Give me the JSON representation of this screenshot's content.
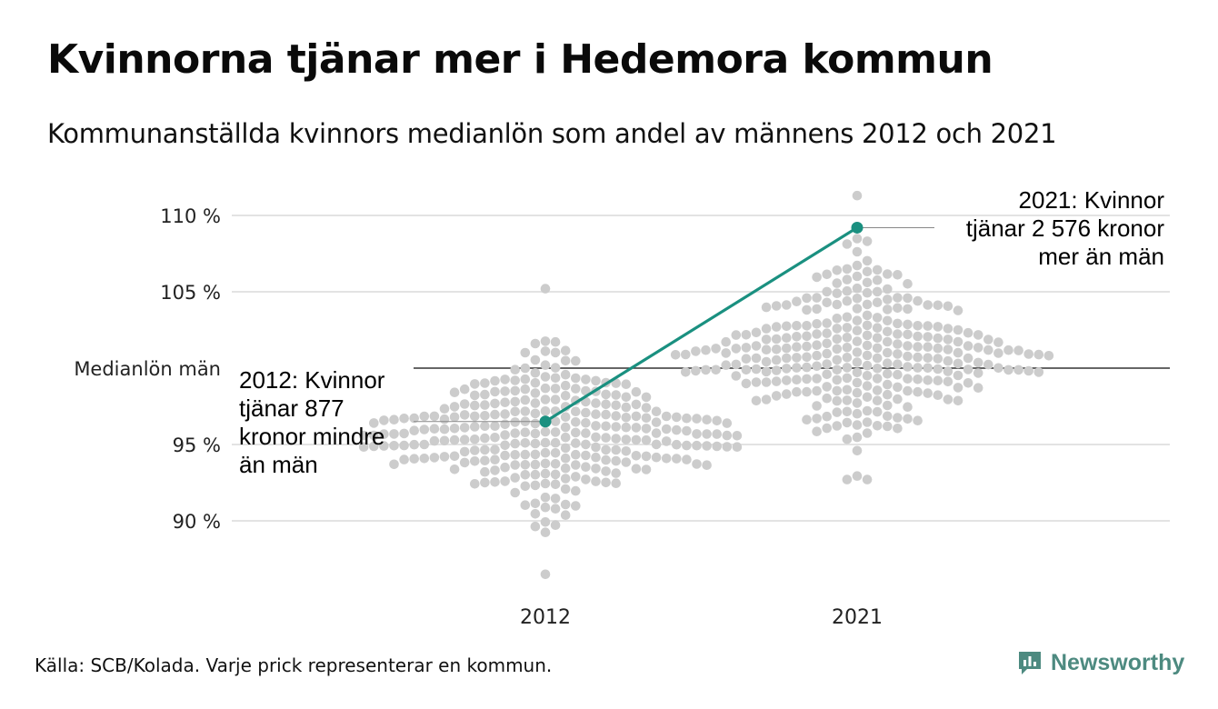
{
  "header": {
    "title": "Kvinnorna tjänar mer i Hedemora kommun",
    "subtitle": "Kommunanställda kvinnors medianlön som andel av männens 2012 och 2021"
  },
  "footer": {
    "source": "Källa: SCB/Kolada. Varje prick representerar en kommun.",
    "brand": "Newsworthy",
    "brand_icon": "newsworthy-logo-icon"
  },
  "chart_data": {
    "type": "scatter",
    "subtype": "beeswarm",
    "categories": [
      "2012",
      "2021"
    ],
    "y_ticks": [
      {
        "value": 90,
        "label": "90 %"
      },
      {
        "value": 95,
        "label": "95 %"
      },
      {
        "value": 100,
        "label": "Medianlön män"
      },
      {
        "value": 105,
        "label": "105 %"
      },
      {
        "value": 110,
        "label": "110 %"
      }
    ],
    "ylim": [
      86,
      112
    ],
    "grid": true,
    "reference_line": {
      "value": 100,
      "label": "Medianlön män"
    },
    "highlight": {
      "name": "Hedemora",
      "values": [
        96.5,
        109.2
      ],
      "color": "#1a9080"
    },
    "annotations": [
      {
        "category": "2012",
        "lines": [
          "2012: Kvinnor",
          "tjänar 877",
          "kronor mindre",
          "än män"
        ]
      },
      {
        "category": "2021",
        "lines": [
          "2021: Kvinnor",
          "tjänar 2 576 kronor",
          "mer än män"
        ]
      }
    ],
    "distributions": [
      {
        "category": "2012",
        "count": 290,
        "median": 95.6,
        "min": 86.5,
        "max": 105.2,
        "spread": 2.3
      },
      {
        "category": "2021",
        "count": 290,
        "median": 101.0,
        "min": 92.7,
        "max": 111.3,
        "spread": 2.5
      }
    ],
    "colors": {
      "dots": "#cccccc",
      "grid": "#e3e3e3",
      "reference": "#333333",
      "highlight": "#1a9080"
    }
  }
}
